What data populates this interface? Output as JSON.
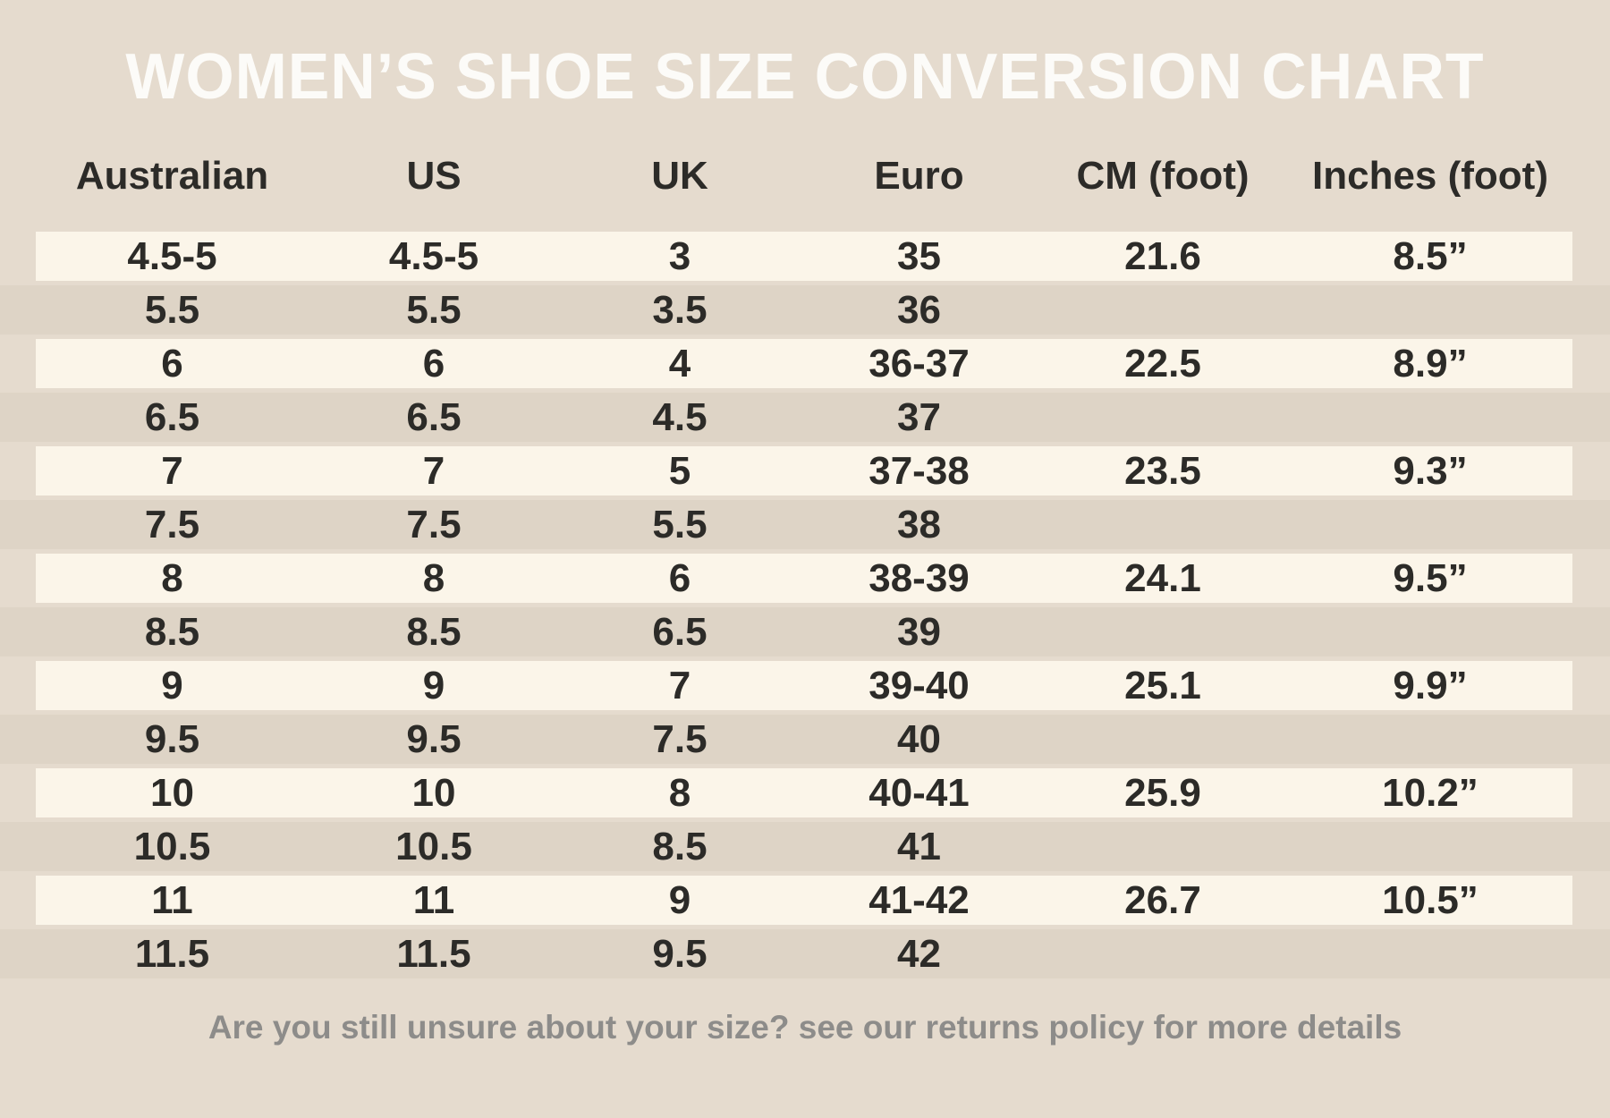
{
  "title": "WOMEN’S SHOE SIZE CONVERSION CHART",
  "footer": "Are you still unsure about your size? see our returns policy for more details",
  "colors": {
    "background": "#E5DBCE",
    "stripe_row": "#FBF5E9",
    "dark_row_band": "#DED4C6",
    "text": "#2C2B28",
    "title_text": "#FCFBF8",
    "footer_text": "#8D8C8A"
  },
  "chart_data": {
    "type": "table",
    "title": "WOMEN’S SHOE SIZE CONVERSION CHART",
    "columns": [
      "Australian",
      "US",
      "UK",
      "Euro",
      "CM (foot)",
      "Inches (foot)"
    ],
    "rows": [
      [
        "4.5-5",
        "4.5-5",
        "3",
        "35",
        "21.6",
        "8.5”"
      ],
      [
        "5.5",
        "5.5",
        "3.5",
        "36",
        "",
        ""
      ],
      [
        "6",
        "6",
        "4",
        "36-37",
        "22.5",
        "8.9”"
      ],
      [
        "6.5",
        "6.5",
        "4.5",
        "37",
        "",
        ""
      ],
      [
        "7",
        "7",
        "5",
        "37-38",
        "23.5",
        "9.3”"
      ],
      [
        "7.5",
        "7.5",
        "5.5",
        "38",
        "",
        ""
      ],
      [
        "8",
        "8",
        "6",
        "38-39",
        "24.1",
        "9.5”"
      ],
      [
        "8.5",
        "8.5",
        "6.5",
        "39",
        "",
        ""
      ],
      [
        "9",
        "9",
        "7",
        "39-40",
        "25.1",
        "9.9”"
      ],
      [
        "9.5",
        "9.5",
        "7.5",
        "40",
        "",
        ""
      ],
      [
        "10",
        "10",
        "8",
        "40-41",
        "25.9",
        "10.2”"
      ],
      [
        "10.5",
        "10.5",
        "8.5",
        "41",
        "",
        ""
      ],
      [
        "11",
        "11",
        "9",
        "41-42",
        "26.7",
        "10.5”"
      ],
      [
        "11.5",
        "11.5",
        "9.5",
        "42",
        "",
        ""
      ]
    ],
    "layout": {
      "striped": true,
      "stripe_rows": "odd",
      "header_position": "top",
      "grid": false
    }
  }
}
